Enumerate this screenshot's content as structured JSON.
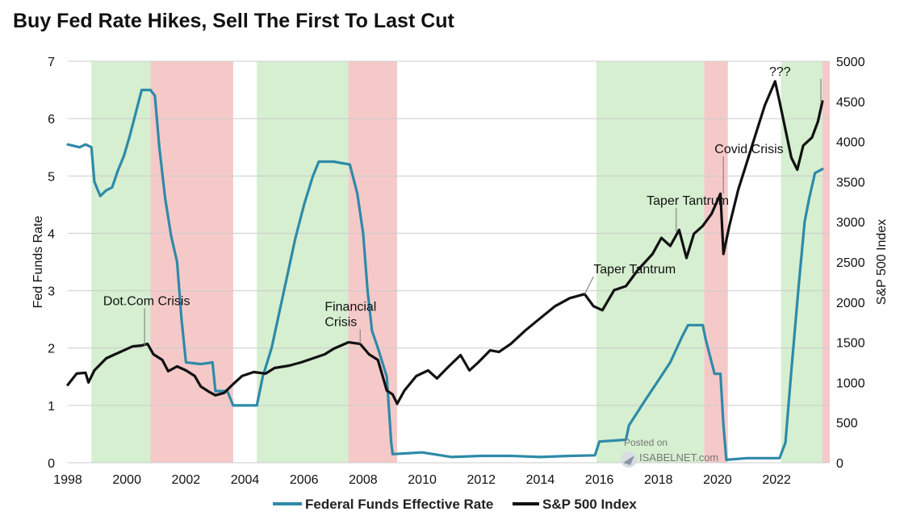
{
  "chart_data": {
    "type": "line",
    "title": "Buy Fed Rate Hikes, Sell The First To Last Cut",
    "ylabel_left": "Fed Funds Rate",
    "ylabel_right": "S&P 500 Index",
    "ylim_left": [
      0,
      7
    ],
    "ylim_right": [
      0,
      5000
    ],
    "xlim": [
      1998,
      2023.8
    ],
    "x_ticks": [
      "1998",
      "2000",
      "2002",
      "2004",
      "2006",
      "2008",
      "2010",
      "2012",
      "2014",
      "2016",
      "2018",
      "2020",
      "2022"
    ],
    "y_ticks_left": [
      "0",
      "1",
      "2",
      "3",
      "4",
      "5",
      "6",
      "7"
    ],
    "y_ticks_right": [
      "0",
      "500",
      "1000",
      "1500",
      "2000",
      "2500",
      "3000",
      "3500",
      "4000",
      "4500",
      "5000"
    ],
    "grid": "horizontal",
    "legend_position": "bottom-center",
    "colors": {
      "fed_rate": "#2e8aa8",
      "sp500": "#111111",
      "hike_shade": "#d5efd0",
      "cut_shade": "#f6c9c9"
    },
    "shading": [
      {
        "type": "hike",
        "start": 1998.8,
        "end": 2000.8
      },
      {
        "type": "cut",
        "start": 2000.8,
        "end": 2003.6
      },
      {
        "type": "hike",
        "start": 2004.4,
        "end": 2007.5
      },
      {
        "type": "cut",
        "start": 2007.5,
        "end": 2009.15
      },
      {
        "type": "hike",
        "start": 2015.9,
        "end": 2019.55
      },
      {
        "type": "cut",
        "start": 2019.55,
        "end": 2020.35
      },
      {
        "type": "hike",
        "start": 2022.15,
        "end": 2023.55
      },
      {
        "type": "cut",
        "start": 2023.55,
        "end": 2023.8
      }
    ],
    "series": [
      {
        "name": "Federal Funds Effective Rate",
        "axis": "left",
        "points": [
          [
            1998.0,
            5.55
          ],
          [
            1998.4,
            5.5
          ],
          [
            1998.6,
            5.55
          ],
          [
            1998.8,
            5.5
          ],
          [
            1998.9,
            4.9
          ],
          [
            1999.1,
            4.65
          ],
          [
            1999.3,
            4.75
          ],
          [
            1999.5,
            4.8
          ],
          [
            1999.7,
            5.1
          ],
          [
            1999.9,
            5.35
          ],
          [
            2000.1,
            5.7
          ],
          [
            2000.3,
            6.1
          ],
          [
            2000.5,
            6.5
          ],
          [
            2000.8,
            6.5
          ],
          [
            2000.95,
            6.4
          ],
          [
            2001.1,
            5.5
          ],
          [
            2001.3,
            4.6
          ],
          [
            2001.5,
            3.95
          ],
          [
            2001.7,
            3.5
          ],
          [
            2001.85,
            2.5
          ],
          [
            2002.0,
            1.75
          ],
          [
            2002.5,
            1.72
          ],
          [
            2002.9,
            1.75
          ],
          [
            2003.0,
            1.25
          ],
          [
            2003.4,
            1.25
          ],
          [
            2003.6,
            1.0
          ],
          [
            2004.4,
            1.0
          ],
          [
            2004.6,
            1.5
          ],
          [
            2004.9,
            2.0
          ],
          [
            2005.3,
            2.95
          ],
          [
            2005.7,
            3.9
          ],
          [
            2006.0,
            4.5
          ],
          [
            2006.3,
            5.0
          ],
          [
            2006.5,
            5.25
          ],
          [
            2007.0,
            5.25
          ],
          [
            2007.55,
            5.2
          ],
          [
            2007.8,
            4.7
          ],
          [
            2008.0,
            4.0
          ],
          [
            2008.15,
            3.0
          ],
          [
            2008.3,
            2.3
          ],
          [
            2008.5,
            2.0
          ],
          [
            2008.8,
            1.5
          ],
          [
            2008.95,
            0.35
          ],
          [
            2009.0,
            0.15
          ],
          [
            2010.0,
            0.18
          ],
          [
            2011.0,
            0.1
          ],
          [
            2012.0,
            0.12
          ],
          [
            2013.0,
            0.12
          ],
          [
            2014.0,
            0.1
          ],
          [
            2015.0,
            0.12
          ],
          [
            2015.85,
            0.13
          ],
          [
            2016.0,
            0.37
          ],
          [
            2016.9,
            0.4
          ],
          [
            2017.0,
            0.65
          ],
          [
            2017.5,
            1.05
          ],
          [
            2017.95,
            1.4
          ],
          [
            2018.4,
            1.75
          ],
          [
            2018.8,
            2.2
          ],
          [
            2019.0,
            2.4
          ],
          [
            2019.5,
            2.4
          ],
          [
            2019.6,
            2.15
          ],
          [
            2019.9,
            1.55
          ],
          [
            2020.1,
            1.55
          ],
          [
            2020.2,
            0.65
          ],
          [
            2020.3,
            0.05
          ],
          [
            2021.0,
            0.08
          ],
          [
            2022.1,
            0.08
          ],
          [
            2022.3,
            0.35
          ],
          [
            2022.5,
            1.6
          ],
          [
            2022.75,
            3.1
          ],
          [
            2022.95,
            4.2
          ],
          [
            2023.1,
            4.6
          ],
          [
            2023.3,
            5.05
          ],
          [
            2023.55,
            5.12
          ]
        ]
      },
      {
        "name": "S&P 500 Index",
        "axis": "right",
        "points": [
          [
            1998.0,
            970
          ],
          [
            1998.3,
            1110
          ],
          [
            1998.6,
            1120
          ],
          [
            1998.7,
            1000
          ],
          [
            1998.9,
            1150
          ],
          [
            1999.3,
            1300
          ],
          [
            1999.6,
            1350
          ],
          [
            1999.9,
            1400
          ],
          [
            2000.2,
            1450
          ],
          [
            2000.5,
            1460
          ],
          [
            2000.7,
            1480
          ],
          [
            2000.9,
            1350
          ],
          [
            2001.2,
            1280
          ],
          [
            2001.4,
            1140
          ],
          [
            2001.7,
            1200
          ],
          [
            2002.0,
            1150
          ],
          [
            2002.3,
            1080
          ],
          [
            2002.5,
            950
          ],
          [
            2002.8,
            880
          ],
          [
            2003.0,
            840
          ],
          [
            2003.3,
            870
          ],
          [
            2003.6,
            980
          ],
          [
            2003.9,
            1080
          ],
          [
            2004.3,
            1130
          ],
          [
            2004.7,
            1110
          ],
          [
            2005.0,
            1180
          ],
          [
            2005.5,
            1210
          ],
          [
            2005.9,
            1250
          ],
          [
            2006.3,
            1300
          ],
          [
            2006.7,
            1350
          ],
          [
            2007.0,
            1420
          ],
          [
            2007.5,
            1500
          ],
          [
            2007.9,
            1480
          ],
          [
            2008.2,
            1350
          ],
          [
            2008.5,
            1280
          ],
          [
            2008.8,
            900
          ],
          [
            2009.0,
            850
          ],
          [
            2009.15,
            735
          ],
          [
            2009.4,
            900
          ],
          [
            2009.8,
            1080
          ],
          [
            2010.2,
            1150
          ],
          [
            2010.5,
            1050
          ],
          [
            2010.9,
            1200
          ],
          [
            2011.3,
            1340
          ],
          [
            2011.6,
            1150
          ],
          [
            2011.9,
            1250
          ],
          [
            2012.3,
            1400
          ],
          [
            2012.6,
            1380
          ],
          [
            2013.0,
            1480
          ],
          [
            2013.5,
            1650
          ],
          [
            2014.0,
            1800
          ],
          [
            2014.5,
            1950
          ],
          [
            2015.0,
            2050
          ],
          [
            2015.5,
            2100
          ],
          [
            2015.8,
            1950
          ],
          [
            2016.1,
            1900
          ],
          [
            2016.5,
            2150
          ],
          [
            2016.9,
            2200
          ],
          [
            2017.3,
            2400
          ],
          [
            2017.8,
            2600
          ],
          [
            2018.1,
            2800
          ],
          [
            2018.4,
            2700
          ],
          [
            2018.7,
            2900
          ],
          [
            2018.95,
            2550
          ],
          [
            2019.2,
            2850
          ],
          [
            2019.5,
            2950
          ],
          [
            2019.8,
            3100
          ],
          [
            2020.1,
            3350
          ],
          [
            2020.2,
            2600
          ],
          [
            2020.4,
            2950
          ],
          [
            2020.7,
            3400
          ],
          [
            2021.0,
            3750
          ],
          [
            2021.3,
            4100
          ],
          [
            2021.6,
            4450
          ],
          [
            2021.95,
            4750
          ],
          [
            2022.1,
            4500
          ],
          [
            2022.3,
            4150
          ],
          [
            2022.5,
            3800
          ],
          [
            2022.7,
            3650
          ],
          [
            2022.9,
            3950
          ],
          [
            2023.2,
            4050
          ],
          [
            2023.4,
            4250
          ],
          [
            2023.55,
            4500
          ]
        ]
      }
    ],
    "annotations": [
      {
        "lines": [
          "Dot.Com Crisis"
        ],
        "text_x": 1999.2,
        "text_y": 2.75,
        "target_x": 2000.6,
        "target_y": 1460
      },
      {
        "lines": [
          "Financial",
          "Crisis"
        ],
        "text_x": 2006.7,
        "text_y": 2.65,
        "target_x": 2007.9,
        "target_y": 1480
      },
      {
        "lines": [
          "Taper Tantrum"
        ],
        "text_x": 2015.8,
        "text_y": 3.3,
        "target_x": 2015.5,
        "target_y": 2100
      },
      {
        "lines": [
          "Taper Tantrum"
        ],
        "text_x": 2017.6,
        "text_y": 4.5,
        "target_x": 2018.6,
        "target_y": 2880
      },
      {
        "lines": [
          "Covid Crisis"
        ],
        "text_x": 2019.9,
        "text_y": 5.4,
        "target_x": 2020.2,
        "target_y": 3350
      },
      {
        "lines": [
          "???"
        ],
        "text_x": 2021.75,
        "text_y": 6.75,
        "target_x": 2023.5,
        "target_y": 4480
      }
    ],
    "watermark": {
      "line1": "Posted on",
      "line2": "ISABELNET.com"
    }
  }
}
